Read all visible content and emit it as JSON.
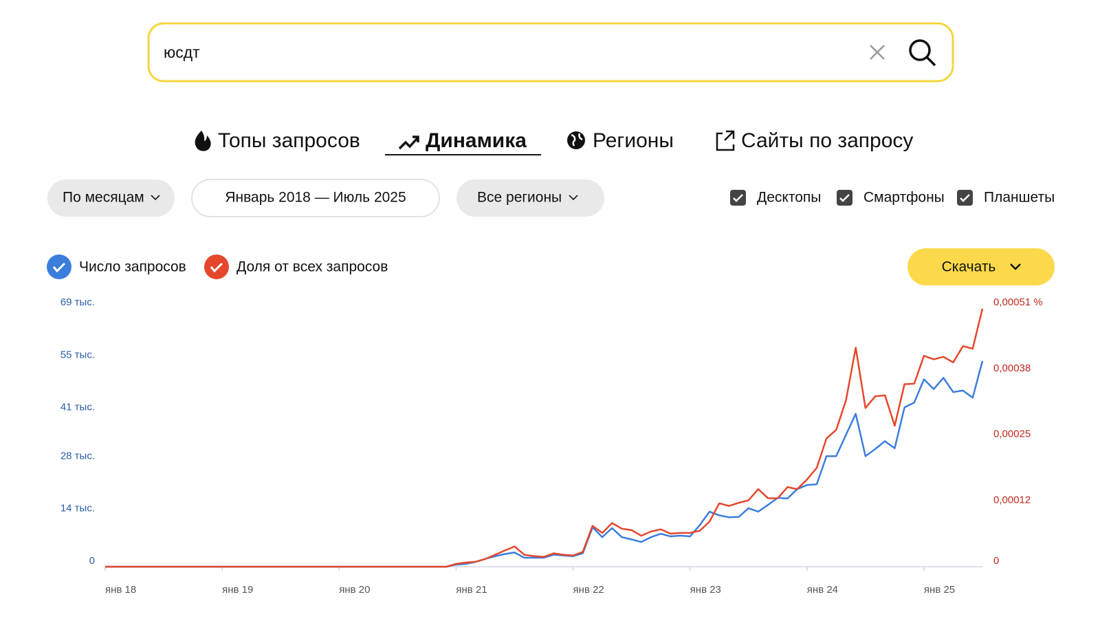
{
  "search": {
    "query": "юсдт"
  },
  "tabs": [
    "Топы запросов",
    "Динамика",
    "Регионы",
    "Сайты по запросу"
  ],
  "filters": {
    "period": "По месяцам",
    "range": "Январь 2018 — Июль 2025",
    "region": "Все регионы"
  },
  "devices": [
    "Десктопы",
    "Смартфоны",
    "Планшеты"
  ],
  "download": "Скачать",
  "chart_data": {
    "type": "line",
    "categories": [
      "янв 18",
      null,
      null,
      null,
      null,
      null,
      null,
      null,
      null,
      null,
      null,
      null,
      "янв 19",
      null,
      null,
      null,
      null,
      null,
      null,
      null,
      null,
      null,
      null,
      null,
      "янв 20",
      null,
      null,
      null,
      null,
      null,
      null,
      null,
      null,
      null,
      null,
      null,
      "янв 21",
      null,
      null,
      null,
      null,
      null,
      null,
      null,
      null,
      null,
      null,
      null,
      "янв 22",
      null,
      null,
      null,
      null,
      null,
      null,
      null,
      null,
      null,
      null,
      null,
      "янв 23",
      null,
      null,
      null,
      null,
      null,
      null,
      null,
      null,
      null,
      null,
      null,
      "янв 24",
      null,
      null,
      null,
      null,
      null,
      null,
      null,
      null,
      null,
      null,
      null,
      "янв 25",
      null,
      null,
      null,
      null,
      null,
      null
    ],
    "series": [
      {
        "name": "Число запросов",
        "color": "#3b7ddd",
        "values": [
          0,
          0,
          0,
          0,
          0,
          0,
          0,
          0,
          0,
          0,
          0,
          0,
          0,
          0,
          0,
          0,
          0,
          0,
          0,
          0,
          0,
          0,
          0,
          0,
          0,
          0,
          0,
          0,
          0,
          0,
          0,
          0,
          0,
          0,
          0,
          0,
          560,
          750,
          1300,
          2100,
          2800,
          3400,
          3800,
          2400,
          2400,
          2400,
          3200,
          3000,
          2800,
          3600,
          10500,
          7900,
          10300,
          7900,
          7300,
          6600,
          7900,
          8800,
          8100,
          8300,
          8100,
          11100,
          14700,
          13700,
          13200,
          13300,
          15600,
          14700,
          16500,
          18400,
          18200,
          20700,
          21800,
          22000,
          29500,
          29500,
          35200,
          40800,
          29500,
          31400,
          33500,
          31600,
          42500,
          43800,
          50000,
          47400,
          50400,
          46600,
          47000,
          45100,
          54900
        ]
      },
      {
        "name": "Доля от всех запросов",
        "color": "#e5472c",
        "axis": "y2",
        "values": [
          0,
          0,
          0,
          0,
          0,
          0,
          0,
          0,
          0,
          0,
          0,
          0,
          0,
          0,
          0,
          0,
          0,
          0,
          0,
          0,
          0,
          0,
          0,
          0,
          0,
          0,
          0,
          0,
          0,
          0,
          0,
          0,
          0,
          0,
          0,
          0,
          5.6e-06,
          8.3e-06,
          9.7e-06,
          1.53e-05,
          2.36e-05,
          3.2e-05,
          4e-05,
          2.36e-05,
          2.09e-05,
          1.95e-05,
          2.64e-05,
          2.36e-05,
          2.22e-05,
          2.92e-05,
          8.06e-05,
          6.67e-05,
          8.62e-05,
          7.5e-05,
          7.23e-05,
          6.12e-05,
          6.95e-05,
          7.37e-05,
          6.53e-05,
          6.67e-05,
          6.67e-05,
          7.09e-05,
          8.9e-05,
          0.000125,
          0.00012,
          0.000126,
          0.000131,
          0.000153,
          0.000135,
          0.000135,
          0.000157,
          0.000153,
          0.000172,
          0.000195,
          0.000253,
          0.00027,
          0.000328,
          0.000432,
          0.000313,
          0.000336,
          0.000338,
          0.000278,
          0.00036,
          0.000361,
          0.000416,
          0.000409,
          0.000414,
          0.000403,
          0.000435,
          0.00043,
          0.000509
        ]
      }
    ],
    "ylim": [
      0,
      69000
    ],
    "yticks": [
      {
        "value": 0,
        "label": "0"
      },
      {
        "value": 14000,
        "label": "14 тыс."
      },
      {
        "value": 28000,
        "label": "28 тыс."
      },
      {
        "value": 41000,
        "label": "41 тыс."
      },
      {
        "value": 55000,
        "label": "55 тыс."
      },
      {
        "value": 69000,
        "label": "69 тыс."
      }
    ],
    "y2lim": [
      0,
      0.00051
    ],
    "y2ticks": [
      {
        "value": 0,
        "label": "0"
      },
      {
        "value": 0.00012,
        "label": "0,00012"
      },
      {
        "value": 0.00025,
        "label": "0,00025"
      },
      {
        "value": 0.00038,
        "label": "0,00038"
      },
      {
        "value": 0.00051,
        "label": "0,00051 %"
      }
    ]
  }
}
